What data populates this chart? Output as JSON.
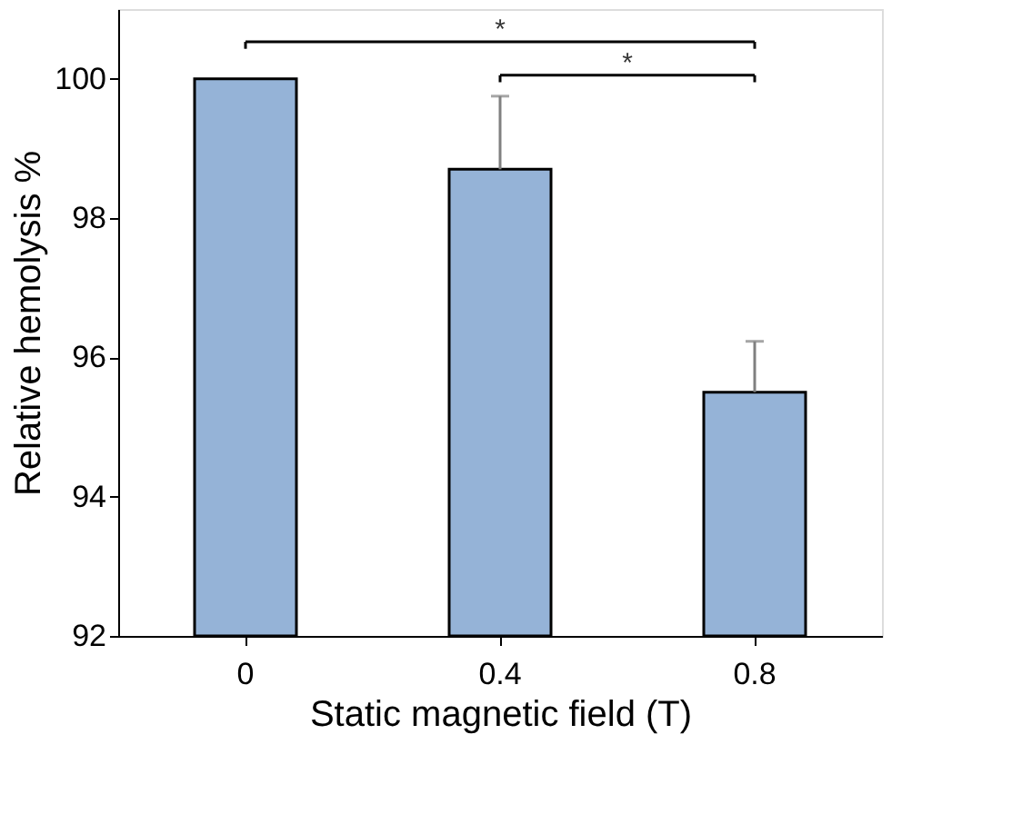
{
  "chart_data": {
    "type": "bar",
    "xlabel": "Static magnetic field (T)",
    "ylabel": "Relative hemolysis %",
    "categories": [
      "0",
      "0.4",
      "0.8"
    ],
    "values": [
      100,
      98.7,
      95.5
    ],
    "errors": [
      null,
      [
        98.7,
        99.75
      ],
      [
        95.5,
        96.23
      ]
    ],
    "color": "#95b3d7",
    "ylim": [
      92,
      101
    ],
    "yticks": [
      92,
      94,
      96,
      98,
      100
    ],
    "grid": false,
    "annotations": [
      "*",
      "*"
    ]
  }
}
